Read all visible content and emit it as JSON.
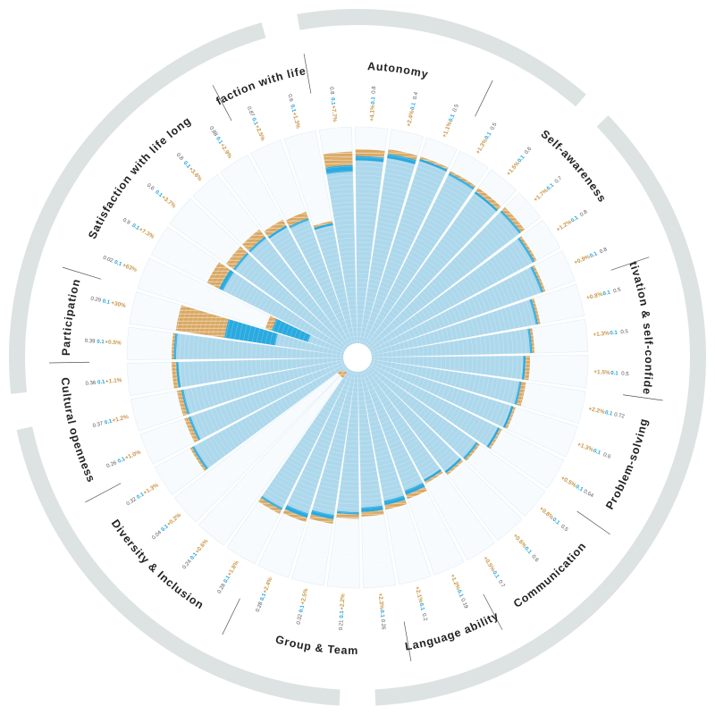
{
  "chart_data": {
    "type": "radial-bar",
    "title": "",
    "colors": {
      "base": "#add8ec",
      "mid": "#2aaae0",
      "top": "#d9a760",
      "ring": "#dde2e2",
      "outline": "#e1eef5",
      "hatch": "#ffffff"
    },
    "rmax": 1.0,
    "categories": [
      {
        "name": "Autonomy",
        "start": 0,
        "end": 4
      },
      {
        "name": "Self-awareness",
        "start": 4,
        "end": 9
      },
      {
        "name": "Motivation & self-confidence",
        "start": 9,
        "end": 12
      },
      {
        "name": "Problem-solving",
        "start": 12,
        "end": 15
      },
      {
        "name": "Communication",
        "start": 15,
        "end": 18
      },
      {
        "name": "Language ability",
        "start": 18,
        "end": 20
      },
      {
        "name": "Group & Team",
        "start": 20,
        "end": 24
      },
      {
        "name": "Diversity & Inclusion",
        "start": 24,
        "end": 28
      },
      {
        "name": "Cultural openness",
        "start": 28,
        "end": 31
      },
      {
        "name": "Participation",
        "start": 31,
        "end": 33
      },
      {
        "name": "Satisfaction with life long",
        "start": 33,
        "end": 38
      },
      {
        "name": "Satisfaction with life short",
        "start": 38,
        "end": 40
      }
    ],
    "bars": [
      {
        "base": 0.8,
        "mid": 0.03,
        "top": 0.06,
        "tick": "0.8",
        "pct": "+7.7%",
        "dot": "0.1"
      },
      {
        "base": 0.85,
        "mid": 0.02,
        "top": 0.03,
        "tick": "0.8",
        "pct": "+4.1%",
        "dot": "0.1"
      },
      {
        "base": 0.87,
        "mid": 0.02,
        "top": 0.02,
        "tick": "0.4",
        "pct": "+2.4%",
        "dot": "0.1"
      },
      {
        "base": 0.89,
        "mid": 0.01,
        "top": 0.01,
        "tick": "0.5",
        "pct": "+1.1%",
        "dot": "0.1"
      },
      {
        "base": 0.88,
        "mid": 0.01,
        "top": 0.01,
        "tick": "0.5",
        "pct": "+1.3%",
        "dot": "0.1"
      },
      {
        "base": 0.87,
        "mid": 0.01,
        "top": 0.02,
        "tick": "0.6",
        "pct": "+1.5%",
        "dot": "0.1"
      },
      {
        "base": 0.88,
        "mid": 0.01,
        "top": 0.02,
        "tick": "0.7",
        "pct": "+1.7%",
        "dot": "0.1"
      },
      {
        "base": 0.86,
        "mid": 0.01,
        "top": 0.01,
        "tick": "0.8",
        "pct": "+1.2%",
        "dot": "0.1"
      },
      {
        "base": 0.84,
        "mid": 0.01,
        "top": 0.01,
        "tick": "0.8",
        "pct": "+0.9%",
        "dot": "0.1"
      },
      {
        "base": 0.78,
        "mid": 0.01,
        "top": 0.01,
        "tick": "0.5",
        "pct": "+0.8%",
        "dot": "0.1"
      },
      {
        "base": 0.74,
        "mid": 0.01,
        "top": 0.01,
        "tick": "0.5",
        "pct": "+1.3%",
        "dot": "0.1"
      },
      {
        "base": 0.71,
        "mid": 0.01,
        "top": 0.02,
        "tick": "0.5",
        "pct": "+1.5%",
        "dot": "0.1"
      },
      {
        "base": 0.7,
        "mid": 0.01,
        "top": 0.02,
        "tick": "0.72",
        "pct": "+2.2%",
        "dot": "0.1"
      },
      {
        "base": 0.69,
        "mid": 0.01,
        "top": 0.01,
        "tick": "0.6",
        "pct": "+1.3%",
        "dot": "0.1"
      },
      {
        "base": 0.67,
        "mid": 0.01,
        "top": 0.01,
        "tick": "0.64",
        "pct": "+0.5%",
        "dot": "0.1"
      },
      {
        "base": 0.62,
        "mid": 0.01,
        "top": 0.01,
        "tick": "0.5",
        "pct": "+0.8%",
        "dot": "0.1"
      },
      {
        "base": 0.61,
        "mid": 0.01,
        "top": 0.01,
        "tick": "0.6",
        "pct": "+0.6%",
        "dot": "0.1"
      },
      {
        "base": 0.59,
        "mid": 0.01,
        "top": 0.01,
        "tick": "0.7",
        "pct": "+0.5%",
        "dot": "0.1"
      },
      {
        "base": 0.6,
        "mid": 0.02,
        "top": 0.02,
        "tick": "0.19",
        "pct": "+1.2%",
        "dot": "0.1"
      },
      {
        "base": 0.62,
        "mid": 0.02,
        "top": 0.02,
        "tick": "0.2",
        "pct": "+2.1%",
        "dot": "0.1"
      },
      {
        "base": 0.64,
        "mid": 0.02,
        "top": 0.02,
        "tick": "0.26",
        "pct": "+2.3%",
        "dot": "0.1"
      },
      {
        "base": 0.66,
        "mid": 0.01,
        "top": 0.02,
        "tick": "0.21",
        "pct": "+2.2%",
        "dot": "0.1"
      },
      {
        "base": 0.68,
        "mid": 0.02,
        "top": 0.02,
        "tick": "0.32",
        "pct": "+2.5%",
        "dot": "0.1"
      },
      {
        "base": 0.7,
        "mid": 0.02,
        "top": 0.02,
        "tick": "0.28",
        "pct": "+2.4%",
        "dot": "0.1"
      },
      {
        "base": 0.72,
        "mid": 0.01,
        "top": 0.02,
        "tick": "0.28",
        "pct": "+1.8%",
        "dot": "0.1"
      },
      {
        "base": 0.05,
        "mid": 0.0,
        "top": 0.03,
        "tick": "0.24",
        "pct": "+0.6%",
        "dot": "0.1"
      },
      {
        "base": 0.06,
        "mid": 0.0,
        "top": 0.02,
        "tick": "0.04",
        "pct": "+0.2%",
        "dot": "0.1"
      },
      {
        "base": 0.8,
        "mid": 0.01,
        "top": 0.01,
        "tick": "0.32",
        "pct": "+1.3%",
        "dot": "0.1"
      },
      {
        "base": 0.76,
        "mid": 0.01,
        "top": 0.02,
        "tick": "0.26",
        "pct": "+1.0%",
        "dot": "0.1"
      },
      {
        "base": 0.76,
        "mid": 0.01,
        "top": 0.02,
        "tick": "0.37",
        "pct": "+1.2%",
        "dot": "0.1"
      },
      {
        "base": 0.77,
        "mid": 0.01,
        "top": 0.02,
        "tick": "0.36",
        "pct": "+1.1%",
        "dot": "0.1"
      },
      {
        "base": 0.78,
        "mid": 0.01,
        "top": 0.01,
        "tick": "0.39",
        "pct": "+0.5%",
        "dot": "0.1"
      },
      {
        "base": 0.34,
        "mid": 0.23,
        "top": 0.22,
        "tick": "0.29",
        "pct": "+30%",
        "dot": "0.1"
      },
      {
        "base": 0.2,
        "mid": 0.17,
        "top": 0.03,
        "tick": "0.02",
        "pct": "+63%",
        "dot": "0.1"
      },
      {
        "base": 0.64,
        "mid": 0.02,
        "top": 0.06,
        "tick": "0.9",
        "pct": "+7.3%",
        "dot": "0.1"
      },
      {
        "base": 0.64,
        "mid": 0.01,
        "top": 0.04,
        "tick": "0.6",
        "pct": "+3.7%",
        "dot": "0.1"
      },
      {
        "base": 0.64,
        "mid": 0.01,
        "top": 0.04,
        "tick": "0.8",
        "pct": "+3.6%",
        "dot": "0.1"
      },
      {
        "base": 0.63,
        "mid": 0.01,
        "top": 0.03,
        "tick": "0.88",
        "pct": "+2.9%",
        "dot": "0.1"
      },
      {
        "base": 0.62,
        "mid": 0.01,
        "top": 0.03,
        "tick": "0.87",
        "pct": "+2.5%",
        "dot": "0.1"
      },
      {
        "base": 0.57,
        "mid": 0.01,
        "top": 0.01,
        "tick": "0.6",
        "pct": "+1.3%",
        "dot": "0.1"
      }
    ]
  }
}
